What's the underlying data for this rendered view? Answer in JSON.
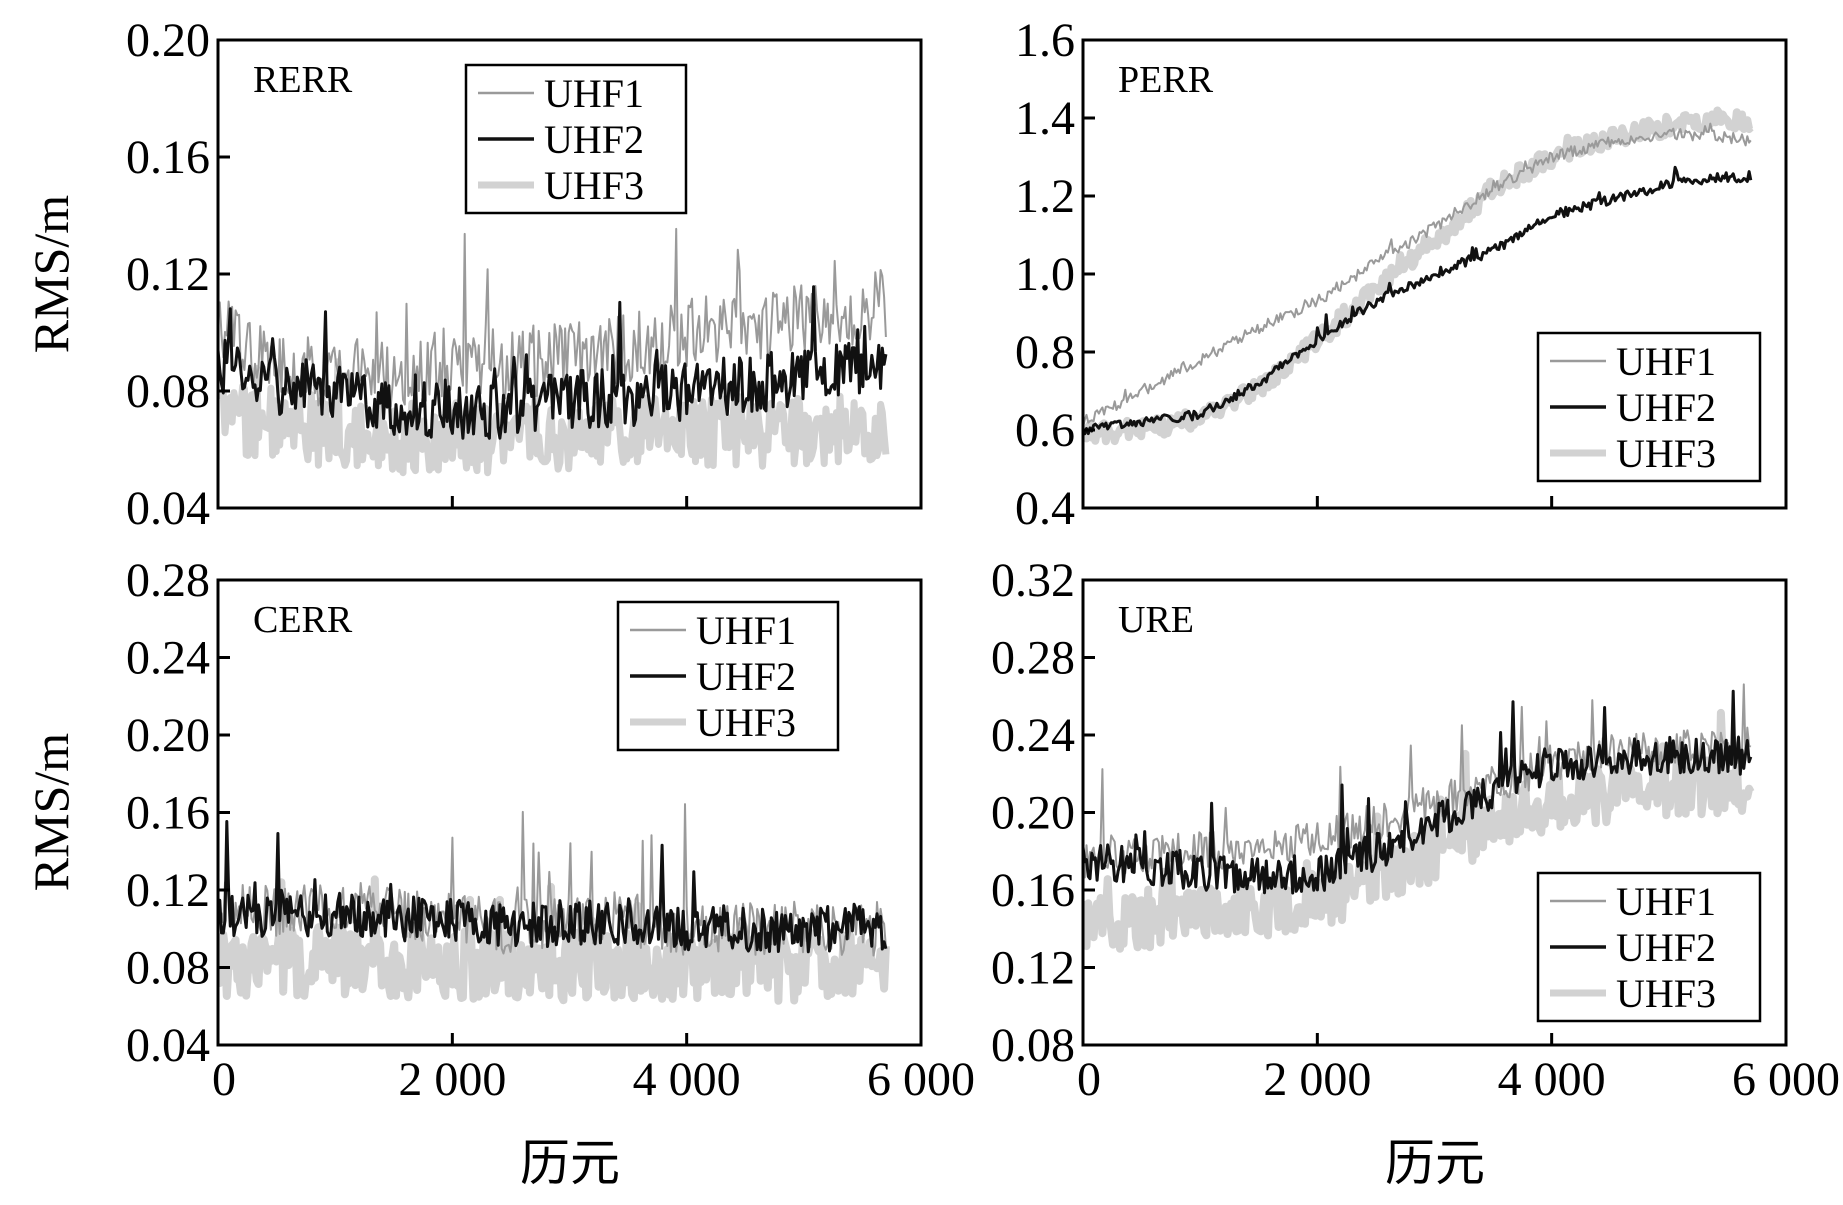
{
  "figure": {
    "ylabel": "RMS/m",
    "xlabel": "历元",
    "x_tick_labels": [
      "0",
      "2 000",
      "4 000",
      "6 000"
    ]
  },
  "chart_data": [
    {
      "type": "line",
      "label": "RERR",
      "xlim": [
        0,
        6000
      ],
      "ylim": [
        0.04,
        0.2
      ],
      "y_ticks": [
        "0.04",
        "0.08",
        "0.12",
        "0.16",
        "0.20"
      ],
      "legend_position": "top-center",
      "x": [
        0,
        500,
        1000,
        1500,
        2000,
        2500,
        3000,
        3500,
        4000,
        4500,
        5000,
        5500,
        5700
      ],
      "series": [
        {
          "name": "UHF1",
          "color": "#9a9a9a",
          "width": 2,
          "noise": 0.012,
          "spike": 0.04,
          "values": [
            0.1,
            0.088,
            0.086,
            0.086,
            0.09,
            0.088,
            0.092,
            0.095,
            0.1,
            0.102,
            0.105,
            0.108,
            0.11
          ]
        },
        {
          "name": "UHF2",
          "color": "#111111",
          "width": 3,
          "noise": 0.01,
          "spike": 0.03,
          "values": [
            0.09,
            0.082,
            0.08,
            0.074,
            0.073,
            0.074,
            0.077,
            0.078,
            0.08,
            0.082,
            0.085,
            0.088,
            0.09
          ]
        },
        {
          "name": "UHF3",
          "color": "#d2d2d2",
          "width": 7,
          "noise": 0.012,
          "spike": 0.02,
          "values": [
            0.072,
            0.068,
            0.066,
            0.064,
            0.064,
            0.064,
            0.065,
            0.066,
            0.066,
            0.066,
            0.066,
            0.067,
            0.068
          ]
        }
      ]
    },
    {
      "type": "line",
      "label": "PERR",
      "xlim": [
        0,
        6000
      ],
      "ylim": [
        0.4,
        1.6
      ],
      "y_ticks": [
        "0.4",
        "0.6",
        "0.8",
        "1.0",
        "1.2",
        "1.4",
        "1.6"
      ],
      "legend_position": "bottom-right",
      "x": [
        0,
        500,
        1000,
        1500,
        2000,
        2500,
        3000,
        3500,
        4000,
        4500,
        5000,
        5500,
        5700
      ],
      "series": [
        {
          "name": "UHF1",
          "color": "#9a9a9a",
          "width": 2,
          "noise": 0.015,
          "spike": 0.03,
          "values": [
            0.62,
            0.7,
            0.78,
            0.86,
            0.93,
            1.03,
            1.12,
            1.22,
            1.3,
            1.34,
            1.36,
            1.35,
            1.34
          ]
        },
        {
          "name": "UHF2",
          "color": "#111111",
          "width": 3,
          "noise": 0.012,
          "spike": 0.05,
          "values": [
            0.6,
            0.62,
            0.64,
            0.72,
            0.83,
            0.93,
            1.0,
            1.06,
            1.15,
            1.19,
            1.23,
            1.25,
            1.23
          ]
        },
        {
          "name": "UHF3",
          "color": "#d2d2d2",
          "width": 8,
          "noise": 0.025,
          "spike": 0.03,
          "values": [
            0.59,
            0.6,
            0.63,
            0.71,
            0.83,
            0.96,
            1.08,
            1.22,
            1.3,
            1.35,
            1.38,
            1.4,
            1.38
          ]
        }
      ]
    },
    {
      "type": "line",
      "label": "CERR",
      "xlim": [
        0,
        6000
      ],
      "ylim": [
        0.04,
        0.28
      ],
      "y_ticks": [
        "0.04",
        "0.08",
        "0.12",
        "0.16",
        "0.20",
        "0.24",
        "0.28"
      ],
      "legend_position": "top-right",
      "x": [
        0,
        500,
        1000,
        1500,
        2000,
        2500,
        3000,
        3500,
        4000,
        4500,
        5000,
        5500,
        5700
      ],
      "series": [
        {
          "name": "UHF1",
          "color": "#9a9a9a",
          "width": 2,
          "noise": 0.014,
          "spike": 0.06,
          "values": [
            0.11,
            0.11,
            0.11,
            0.11,
            0.105,
            0.1,
            0.105,
            0.105,
            0.1,
            0.1,
            0.1,
            0.1,
            0.1
          ]
        },
        {
          "name": "UHF2",
          "color": "#111111",
          "width": 3,
          "noise": 0.012,
          "spike": 0.05,
          "values": [
            0.108,
            0.108,
            0.107,
            0.106,
            0.104,
            0.102,
            0.103,
            0.104,
            0.101,
            0.1,
            0.1,
            0.101,
            0.1
          ]
        },
        {
          "name": "UHF3",
          "color": "#d2d2d2",
          "width": 8,
          "noise": 0.018,
          "spike": 0.03,
          "values": [
            0.083,
            0.083,
            0.083,
            0.082,
            0.082,
            0.081,
            0.081,
            0.081,
            0.081,
            0.081,
            0.08,
            0.08,
            0.08
          ]
        }
      ]
    },
    {
      "type": "line",
      "label": "URE",
      "xlim": [
        0,
        6000
      ],
      "ylim": [
        0.08,
        0.32
      ],
      "y_ticks": [
        "0.08",
        "0.12",
        "0.16",
        "0.20",
        "0.24",
        "0.28",
        "0.32"
      ],
      "legend_position": "bottom-right",
      "x": [
        0,
        500,
        1000,
        1500,
        2000,
        2500,
        3000,
        3500,
        4000,
        4500,
        5000,
        5500,
        5700
      ],
      "series": [
        {
          "name": "UHF1",
          "color": "#9a9a9a",
          "width": 2,
          "noise": 0.01,
          "spike": 0.05,
          "values": [
            0.175,
            0.178,
            0.18,
            0.182,
            0.185,
            0.195,
            0.205,
            0.215,
            0.225,
            0.23,
            0.233,
            0.235,
            0.235
          ]
        },
        {
          "name": "UHF2",
          "color": "#111111",
          "width": 3,
          "noise": 0.01,
          "spike": 0.04,
          "values": [
            0.175,
            0.172,
            0.17,
            0.168,
            0.168,
            0.18,
            0.195,
            0.21,
            0.225,
            0.228,
            0.23,
            0.23,
            0.228
          ]
        },
        {
          "name": "UHF3",
          "color": "#d2d2d2",
          "width": 8,
          "noise": 0.015,
          "spike": 0.03,
          "values": [
            0.14,
            0.145,
            0.148,
            0.15,
            0.155,
            0.165,
            0.18,
            0.195,
            0.205,
            0.21,
            0.212,
            0.215,
            0.215
          ]
        }
      ]
    }
  ]
}
